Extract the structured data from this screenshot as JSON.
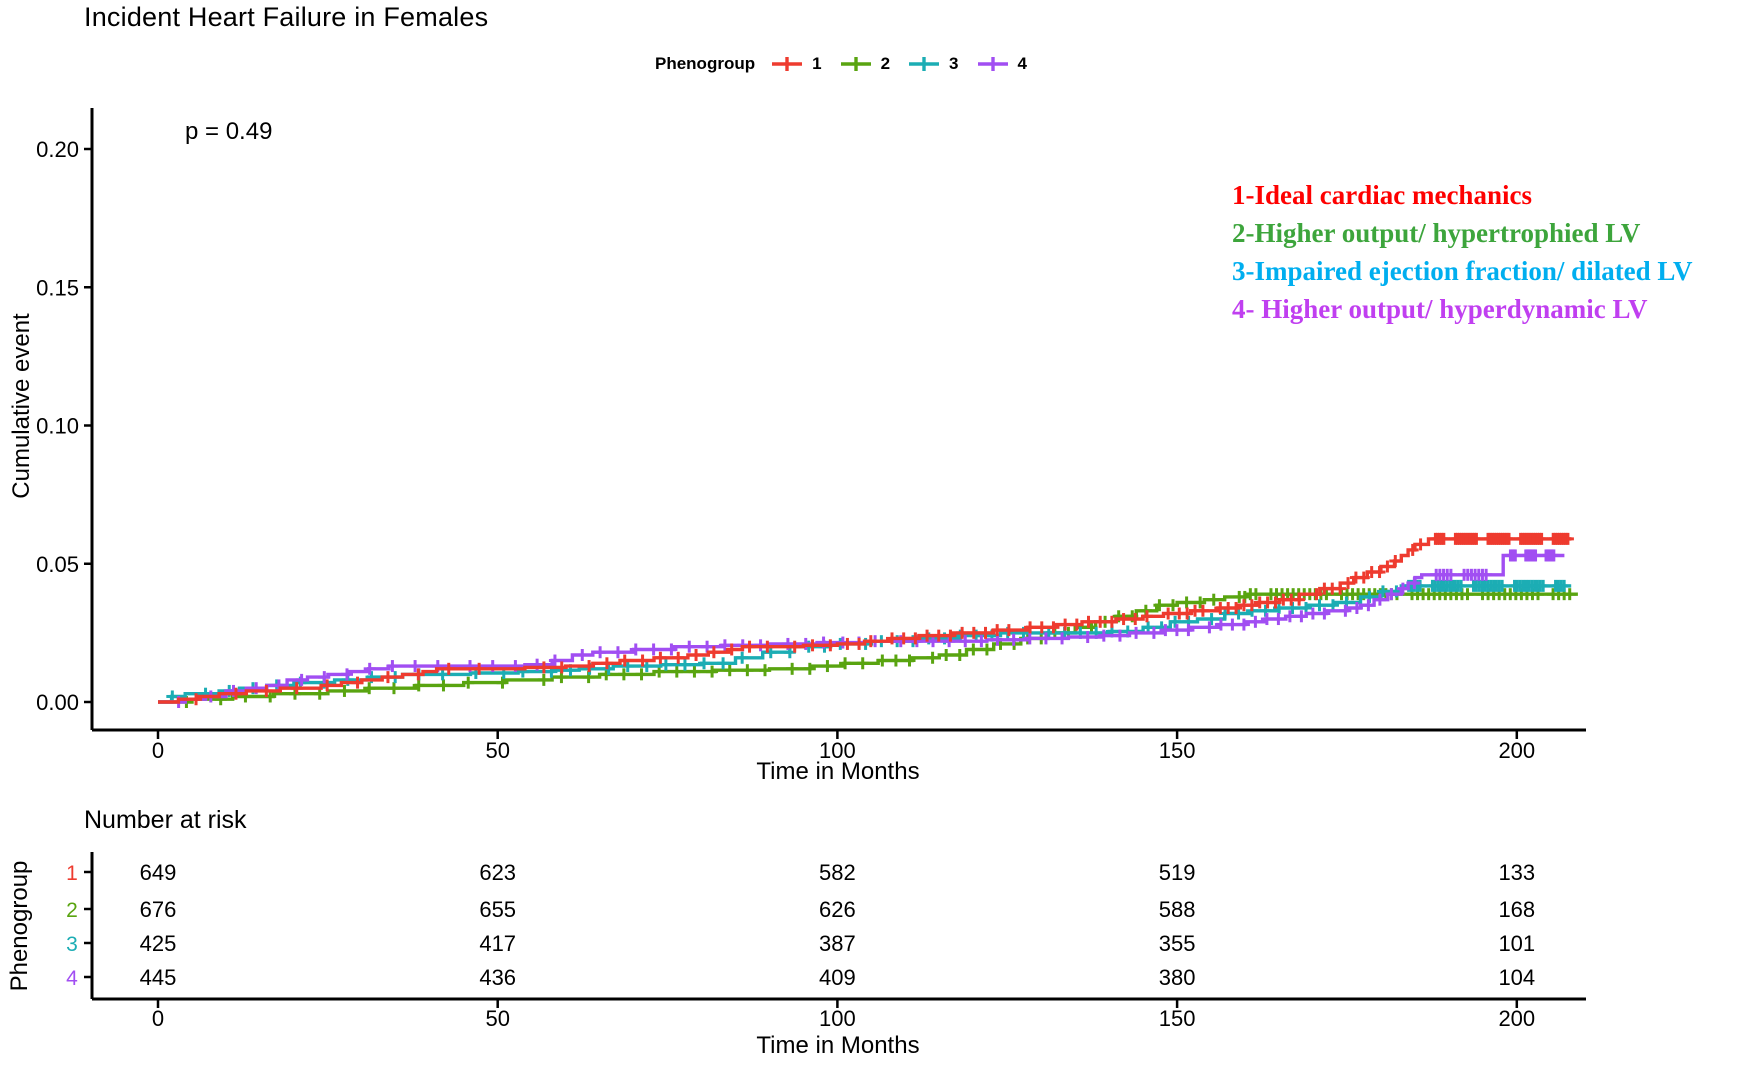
{
  "title": "Incident Heart Failure in Females",
  "pvalue": "p = 0.49",
  "legend": {
    "label": "Phenogroup",
    "items": [
      {
        "label": "1",
        "color": "#ee3b2f"
      },
      {
        "label": "2",
        "color": "#59a410"
      },
      {
        "label": "3",
        "color": "#1cadb4"
      },
      {
        "label": "4",
        "color": "#a14ef2"
      }
    ]
  },
  "annotations": [
    {
      "text": "1-Ideal cardiac mechanics",
      "color": "#fe0000"
    },
    {
      "text": "2-Higher output/ hypertrophied LV",
      "color": "#3da53c"
    },
    {
      "text": "3-Impaired ejection fraction/ dilated LV",
      "color": "#00aeef"
    },
    {
      "text": "4- Higher output/ hyperdynamic LV",
      "color": "#c03ff0"
    }
  ],
  "chart_data": {
    "type": "line",
    "title": "Incident Heart Failure in Females",
    "xlabel": "Time in Months",
    "ylabel": "Cumulative event",
    "xlim": [
      0,
      210
    ],
    "ylim": [
      0,
      0.21
    ],
    "xticks": [
      "0",
      "50",
      "100",
      "150",
      "200"
    ],
    "xtick_values": [
      0,
      50,
      100,
      150,
      200
    ],
    "yticks": [
      "0.00",
      "0.05",
      "0.10",
      "0.15",
      "0.20"
    ],
    "ytick_values": [
      0,
      0.05,
      0.1,
      0.15,
      0.2
    ],
    "grid": false,
    "legend_position": "top",
    "series": [
      {
        "name": "2",
        "color": "#59a410",
        "step_points": [
          [
            0,
            0
          ],
          [
            5,
            0.001
          ],
          [
            11,
            0.002
          ],
          [
            17,
            0.003
          ],
          [
            25,
            0.004
          ],
          [
            31,
            0.005
          ],
          [
            38,
            0.006
          ],
          [
            45,
            0.007
          ],
          [
            51,
            0.008
          ],
          [
            58,
            0.009
          ],
          [
            65,
            0.01
          ],
          [
            73,
            0.011
          ],
          [
            82,
            0.0115
          ],
          [
            90,
            0.012
          ],
          [
            96,
            0.013
          ],
          [
            101,
            0.014
          ],
          [
            106,
            0.015
          ],
          [
            111,
            0.016
          ],
          [
            115,
            0.017
          ],
          [
            119,
            0.019
          ],
          [
            123,
            0.021
          ],
          [
            127,
            0.023
          ],
          [
            131,
            0.025
          ],
          [
            135,
            0.027
          ],
          [
            138,
            0.029
          ],
          [
            141,
            0.031
          ],
          [
            144,
            0.033
          ],
          [
            147,
            0.035
          ],
          [
            150,
            0.036
          ],
          [
            154,
            0.037
          ],
          [
            157,
            0.038
          ],
          [
            160,
            0.039
          ],
          [
            209,
            0.039
          ]
        ],
        "censor_ranges": [
          [
            3,
            52,
            13
          ],
          [
            56,
            105,
            18
          ],
          [
            106,
            157,
            24
          ],
          [
            159,
            208,
            52
          ]
        ]
      },
      {
        "name": "3",
        "color": "#1cadb4",
        "step_points": [
          [
            0,
            0
          ],
          [
            2,
            0.002
          ],
          [
            4,
            0.003
          ],
          [
            9,
            0.004
          ],
          [
            12,
            0.005
          ],
          [
            16,
            0.006
          ],
          [
            20,
            0.007
          ],
          [
            26,
            0.008
          ],
          [
            31,
            0.009
          ],
          [
            36,
            0.01
          ],
          [
            46,
            0.0105
          ],
          [
            53,
            0.011
          ],
          [
            58,
            0.0115
          ],
          [
            62,
            0.012
          ],
          [
            67,
            0.013
          ],
          [
            74,
            0.0135
          ],
          [
            80,
            0.014
          ],
          [
            85,
            0.016
          ],
          [
            89,
            0.018
          ],
          [
            93,
            0.02
          ],
          [
            99,
            0.021
          ],
          [
            105,
            0.022
          ],
          [
            112,
            0.023
          ],
          [
            118,
            0.024
          ],
          [
            124,
            0.025
          ],
          [
            140,
            0.0255
          ],
          [
            145,
            0.027
          ],
          [
            149,
            0.029
          ],
          [
            153,
            0.03
          ],
          [
            157,
            0.032
          ],
          [
            161,
            0.033
          ],
          [
            165,
            0.034
          ],
          [
            169,
            0.035
          ],
          [
            173,
            0.036
          ],
          [
            177,
            0.038
          ],
          [
            180,
            0.04
          ],
          [
            183,
            0.042
          ],
          [
            208,
            0.042
          ]
        ],
        "censor_ranges": [
          [
            1,
            48,
            13
          ],
          [
            50,
            94,
            15
          ],
          [
            95,
            144,
            20
          ],
          [
            145,
            183,
            18
          ],
          [
            184,
            207,
            42
          ]
        ]
      },
      {
        "name": "4",
        "color": "#a14ef2",
        "step_points": [
          [
            0,
            0
          ],
          [
            4,
            0.001
          ],
          [
            7,
            0.002
          ],
          [
            10,
            0.004
          ],
          [
            13,
            0.005
          ],
          [
            16,
            0.006
          ],
          [
            19,
            0.008
          ],
          [
            22,
            0.009
          ],
          [
            25,
            0.01
          ],
          [
            28,
            0.011
          ],
          [
            31,
            0.012
          ],
          [
            34,
            0.013
          ],
          [
            54,
            0.0135
          ],
          [
            58,
            0.015
          ],
          [
            61,
            0.017
          ],
          [
            64,
            0.018
          ],
          [
            70,
            0.019
          ],
          [
            76,
            0.02
          ],
          [
            83,
            0.0205
          ],
          [
            90,
            0.021
          ],
          [
            97,
            0.0215
          ],
          [
            104,
            0.022
          ],
          [
            122,
            0.0225
          ],
          [
            128,
            0.023
          ],
          [
            134,
            0.0235
          ],
          [
            139,
            0.024
          ],
          [
            143,
            0.025
          ],
          [
            148,
            0.026
          ],
          [
            152,
            0.027
          ],
          [
            156,
            0.028
          ],
          [
            160,
            0.029
          ],
          [
            163,
            0.03
          ],
          [
            166,
            0.031
          ],
          [
            169,
            0.032
          ],
          [
            172,
            0.033
          ],
          [
            175,
            0.034
          ],
          [
            177,
            0.035
          ],
          [
            179,
            0.037
          ],
          [
            181,
            0.039
          ],
          [
            183,
            0.041
          ],
          [
            184,
            0.043
          ],
          [
            185,
            0.045
          ],
          [
            186,
            0.046
          ],
          [
            197,
            0.046
          ],
          [
            198,
            0.053
          ],
          [
            207,
            0.053
          ]
        ],
        "censor_ranges": [
          [
            2,
            54,
            15
          ],
          [
            55,
            99,
            16
          ],
          [
            100,
            145,
            18
          ],
          [
            146,
            186,
            22
          ],
          [
            188,
            196,
            12
          ],
          [
            199,
            206,
            26
          ]
        ]
      },
      {
        "name": "1",
        "color": "#ee3b2f",
        "step_points": [
          [
            0,
            0
          ],
          [
            3,
            0.001
          ],
          [
            6,
            0.002
          ],
          [
            9,
            0.003
          ],
          [
            13,
            0.004
          ],
          [
            18,
            0.005
          ],
          [
            24,
            0.006
          ],
          [
            27,
            0.007
          ],
          [
            30,
            0.008
          ],
          [
            33,
            0.009
          ],
          [
            36,
            0.01
          ],
          [
            39,
            0.011
          ],
          [
            41,
            0.012
          ],
          [
            54,
            0.0125
          ],
          [
            60,
            0.013
          ],
          [
            64,
            0.014
          ],
          [
            68,
            0.015
          ],
          [
            73,
            0.016
          ],
          [
            78,
            0.017
          ],
          [
            81,
            0.018
          ],
          [
            84,
            0.019
          ],
          [
            86,
            0.02
          ],
          [
            95,
            0.0205
          ],
          [
            100,
            0.021
          ],
          [
            104,
            0.022
          ],
          [
            108,
            0.023
          ],
          [
            112,
            0.024
          ],
          [
            117,
            0.025
          ],
          [
            123,
            0.026
          ],
          [
            128,
            0.027
          ],
          [
            132,
            0.028
          ],
          [
            136,
            0.029
          ],
          [
            141,
            0.03
          ],
          [
            145,
            0.031
          ],
          [
            148,
            0.032
          ],
          [
            152,
            0.033
          ],
          [
            156,
            0.034
          ],
          [
            159,
            0.035
          ],
          [
            162,
            0.036
          ],
          [
            165,
            0.037
          ],
          [
            168,
            0.039
          ],
          [
            171,
            0.041
          ],
          [
            174,
            0.043
          ],
          [
            176,
            0.045
          ],
          [
            178,
            0.047
          ],
          [
            180,
            0.049
          ],
          [
            182,
            0.051
          ],
          [
            183,
            0.053
          ],
          [
            184,
            0.055
          ],
          [
            185,
            0.057
          ],
          [
            187,
            0.059
          ],
          [
            208,
            0.059
          ]
        ],
        "censor_ranges": [
          [
            4,
            50,
            10
          ],
          [
            56,
            100,
            16
          ],
          [
            101,
            149,
            26
          ],
          [
            150,
            186,
            28
          ],
          [
            188,
            208,
            46
          ]
        ]
      }
    ]
  },
  "risk_table": {
    "title": "Number at risk",
    "ylabel": "Phenogroup",
    "xlabel": "Time in Months",
    "xticks": [
      "0",
      "50",
      "100",
      "150",
      "200"
    ],
    "xtick_values": [
      0,
      50,
      100,
      150,
      200
    ],
    "rows": [
      {
        "label": "1",
        "color": "#ee3b2f",
        "values": [
          "649",
          "623",
          "582",
          "519",
          "133"
        ]
      },
      {
        "label": "2",
        "color": "#59a410",
        "values": [
          "676",
          "655",
          "626",
          "588",
          "168"
        ]
      },
      {
        "label": "3",
        "color": "#1cadb4",
        "values": [
          "425",
          "417",
          "387",
          "355",
          "101"
        ]
      },
      {
        "label": "4",
        "color": "#a14ef2",
        "values": [
          "445",
          "436",
          "409",
          "380",
          "104"
        ]
      }
    ]
  }
}
